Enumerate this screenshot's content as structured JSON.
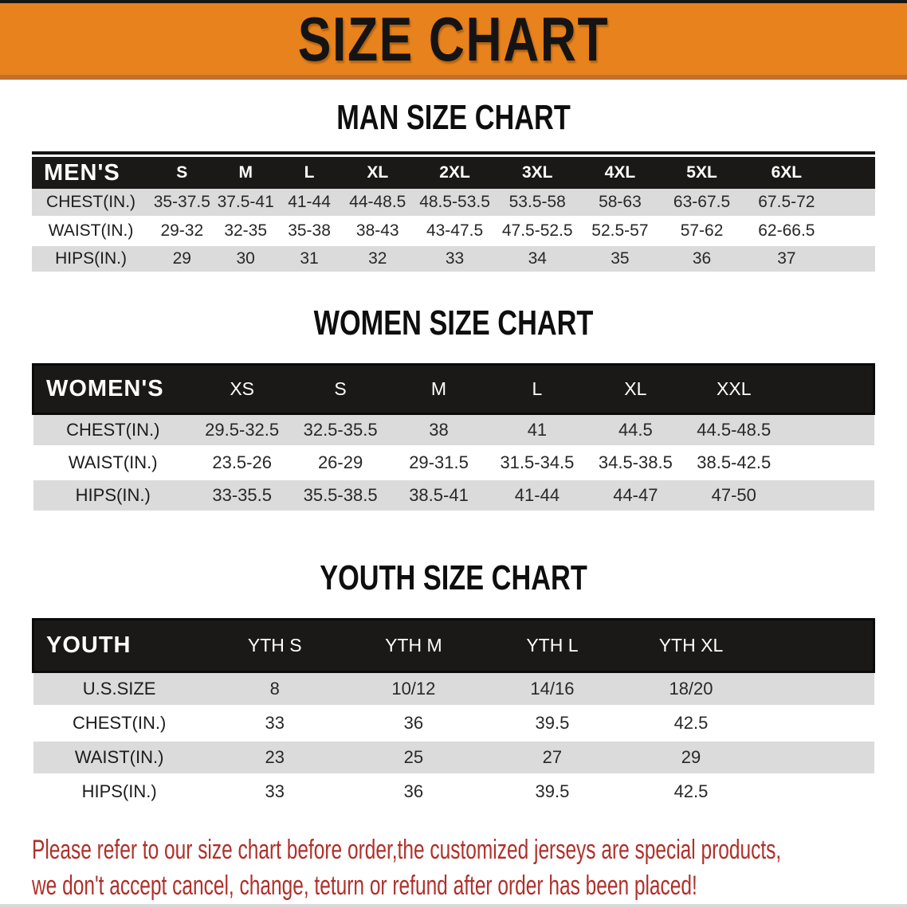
{
  "banner": {
    "title": "SIZE CHART"
  },
  "colors": {
    "banner_bg": "#E7821D",
    "banner_edge": "#C06F2E",
    "band_bg": "#1B1918",
    "row_alt_bg": "#DBDBDB",
    "note_red": "#B0302A"
  },
  "chart_data": [
    {
      "type": "table",
      "title": "MAN SIZE CHART",
      "corner_label": "MEN'S",
      "columns": [
        "S",
        "M",
        "L",
        "XL",
        "2XL",
        "3XL",
        "4XL",
        "5XL",
        "6XL"
      ],
      "rows": [
        {
          "label": "CHEST(IN.)",
          "values": [
            "35-37.5",
            "37.5-41",
            "41-44",
            "44-48.5",
            "48.5-53.5",
            "53.5-58",
            "58-63",
            "63-67.5",
            "67.5-72"
          ]
        },
        {
          "label": "WAIST(IN.)",
          "values": [
            "29-32",
            "32-35",
            "35-38",
            "38-43",
            "43-47.5",
            "47.5-52.5",
            "52.5-57",
            "57-62",
            "62-66.5"
          ]
        },
        {
          "label": "HIPS(IN.)",
          "values": [
            "29",
            "30",
            "31",
            "32",
            "33",
            "34",
            "35",
            "36",
            "37"
          ]
        }
      ]
    },
    {
      "type": "table",
      "title": "WOMEN SIZE CHART",
      "corner_label": "WOMEN'S",
      "columns": [
        "XS",
        "S",
        "M",
        "L",
        "XL",
        "XXL"
      ],
      "rows": [
        {
          "label": "CHEST(IN.)",
          "values": [
            "29.5-32.5",
            "32.5-35.5",
            "38",
            "41",
            "44.5",
            "44.5-48.5"
          ]
        },
        {
          "label": "WAIST(IN.)",
          "values": [
            "23.5-26",
            "26-29",
            "29-31.5",
            "31.5-34.5",
            "34.5-38.5",
            "38.5-42.5"
          ]
        },
        {
          "label": "HIPS(IN.)",
          "values": [
            "33-35.5",
            "35.5-38.5",
            "38.5-41",
            "41-44",
            "44-47",
            "47-50"
          ]
        }
      ]
    },
    {
      "type": "table",
      "title": "YOUTH SIZE CHART",
      "corner_label": "YOUTH",
      "columns": [
        "YTH S",
        "YTH M",
        "YTH L",
        "YTH XL"
      ],
      "rows": [
        {
          "label": "U.S.SIZE",
          "values": [
            "8",
            "10/12",
            "14/16",
            "18/20"
          ]
        },
        {
          "label": "CHEST(IN.)",
          "values": [
            "33",
            "36",
            "39.5",
            "42.5"
          ]
        },
        {
          "label": "WAIST(IN.)",
          "values": [
            "23",
            "25",
            "27",
            "29"
          ]
        },
        {
          "label": "HIPS(IN.)",
          "values": [
            "33",
            "36",
            "39.5",
            "42.5"
          ]
        }
      ]
    }
  ],
  "footnote": {
    "lines": [
      "Please refer to our size chart before order,the customized jerseys are special products,",
      "we don't accept cancel, change, teturn or refund after order has been placed!"
    ]
  }
}
